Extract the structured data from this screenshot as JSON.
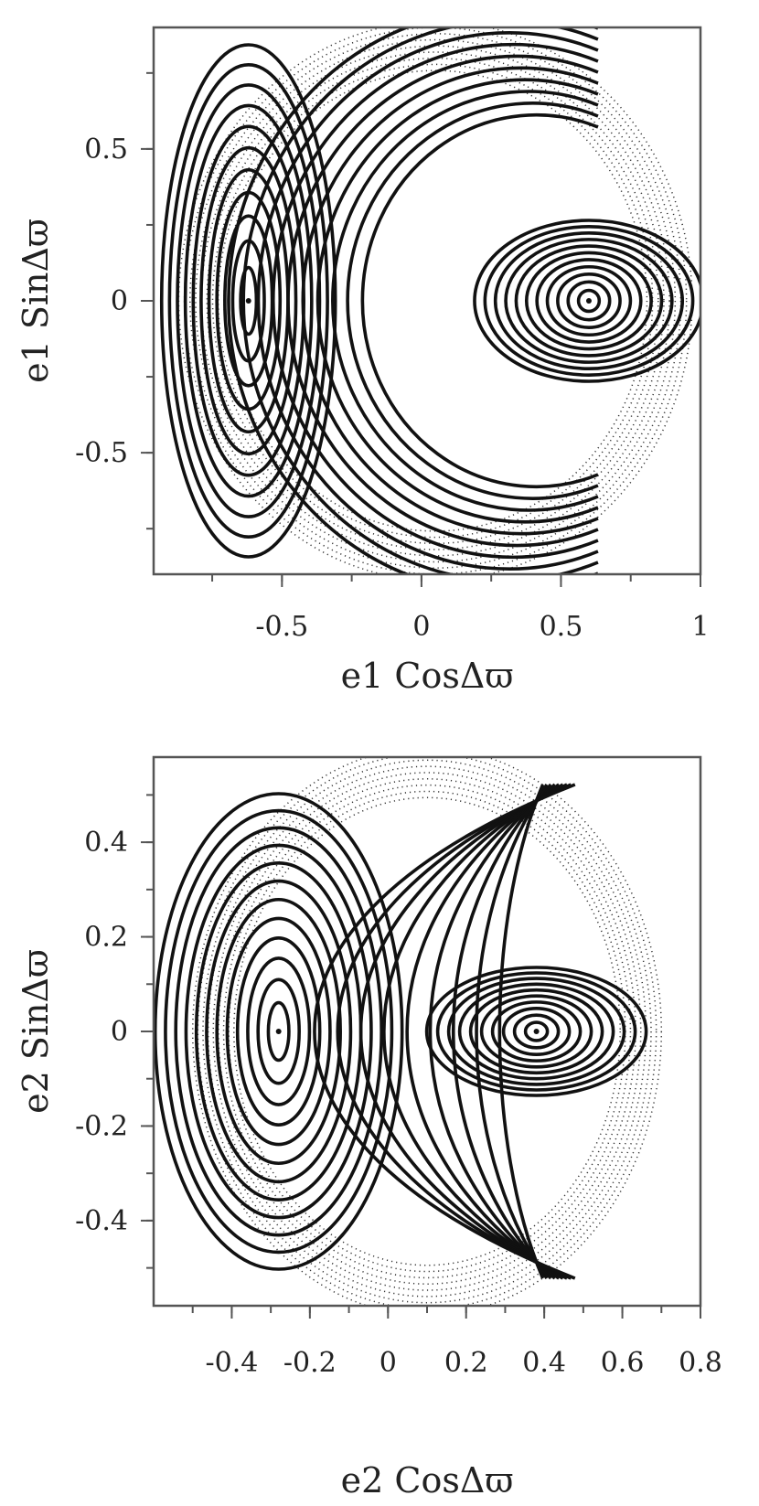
{
  "chart_data": [
    {
      "type": "scatter",
      "xlabel": "e1 CosΔϖ",
      "ylabel": "e1 SinΔϖ",
      "xlim": [
        -0.96,
        1.0
      ],
      "ylim": [
        -0.9,
        0.9
      ],
      "xticks": [
        -0.5,
        0,
        0.5,
        1
      ],
      "xtick_labels": [
        "-0.5",
        "0",
        "0.5",
        "1"
      ],
      "yticks": [
        0.5,
        0,
        -0.5
      ],
      "ytick_labels": [
        "0.5",
        "0",
        "-0.5"
      ],
      "boundary": {
        "center": [
          0.05,
          0
        ],
        "radius": 0.92
      },
      "islands": [
        {
          "center": [
            -0.62,
            0
          ],
          "nested_curves": 11
        },
        {
          "center": [
            0.6,
            0
          ],
          "nested_curves": 11
        }
      ],
      "grid": false
    },
    {
      "type": "scatter",
      "xlabel": "e2 CosΔϖ",
      "ylabel": "e2 SinΔϖ",
      "xlim": [
        -0.6,
        0.8
      ],
      "ylim": [
        -0.58,
        0.58
      ],
      "xticks": [
        -0.4,
        -0.2,
        0,
        0.2,
        0.4,
        0.6,
        0.8
      ],
      "xtick_labels": [
        "-0.4",
        "-0.2",
        "0",
        "0.2",
        "0.4",
        "0.6",
        "0.8"
      ],
      "yticks": [
        0.4,
        0.2,
        0,
        -0.2,
        -0.4
      ],
      "ytick_labels": [
        "0.4",
        "0.2",
        "0",
        "-0.2",
        "-0.4"
      ],
      "boundary": {
        "center": [
          0.1,
          0
        ],
        "radius": 0.6
      },
      "islands": [
        {
          "center": [
            -0.28,
            0
          ],
          "nested_curves": 12
        },
        {
          "center": [
            0.38,
            0
          ],
          "nested_curves": 10
        }
      ],
      "grid": false
    }
  ]
}
